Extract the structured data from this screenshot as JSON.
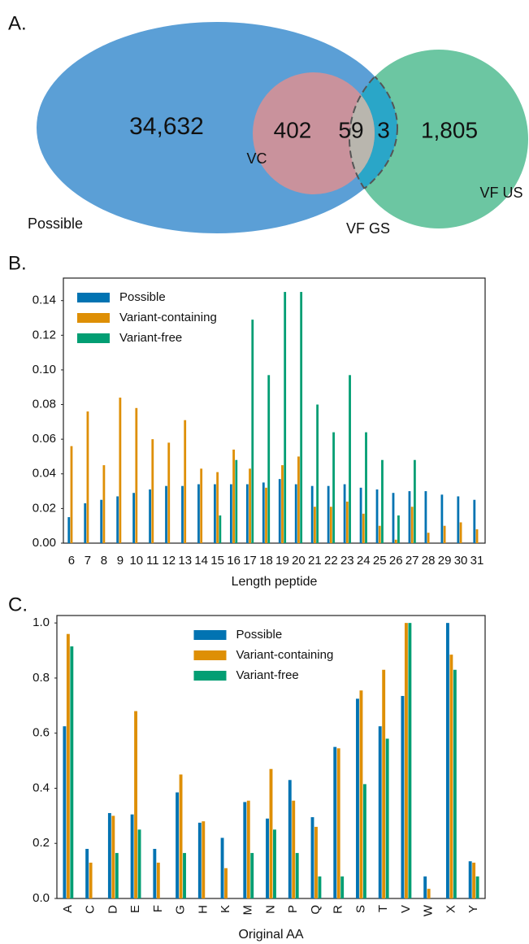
{
  "chart_data": [
    {
      "type": "venn",
      "panel_label": "A.",
      "set_labels": [
        "Possible",
        "VC",
        "VF GS",
        "VF US"
      ],
      "values": [
        34632,
        402,
        59,
        3,
        1805
      ],
      "value_labels": [
        "34,632",
        "402",
        "59",
        "3",
        "1,805"
      ],
      "colors": [
        "#5b9fd6",
        "#c9929c",
        "#6cc6a2",
        "#2aa6c8",
        "#b9b6ae"
      ]
    },
    {
      "type": "bar",
      "panel_label": "B.",
      "xlabel": "Length peptide",
      "legend": "upper left",
      "categories": [
        "6",
        "7",
        "8",
        "9",
        "10",
        "11",
        "12",
        "13",
        "14",
        "15",
        "16",
        "17",
        "18",
        "19",
        "20",
        "21",
        "22",
        "23",
        "24",
        "25",
        "26",
        "27",
        "28",
        "29",
        "30",
        "31"
      ],
      "series": [
        {
          "name": "Possible",
          "color": "#0173b2",
          "values": [
            0.015,
            0.023,
            0.025,
            0.027,
            0.029,
            0.031,
            0.033,
            0.033,
            0.034,
            0.034,
            0.034,
            0.034,
            0.035,
            0.037,
            0.034,
            0.033,
            0.033,
            0.034,
            0.032,
            0.031,
            0.029,
            0.03,
            0.03,
            0.028,
            0.027,
            0.025
          ]
        },
        {
          "name": "Variant-containing",
          "color": "#de8f05",
          "values": [
            0.056,
            0.076,
            0.045,
            0.084,
            0.078,
            0.06,
            0.058,
            0.071,
            0.043,
            0.041,
            0.054,
            0.043,
            0.032,
            0.045,
            0.05,
            0.021,
            0.021,
            0.024,
            0.017,
            0.01,
            0.002,
            0.021,
            0.006,
            0.01,
            0.012,
            0.008
          ]
        },
        {
          "name": "Variant-free",
          "color": "#029e73",
          "values": [
            0,
            0,
            0,
            0,
            0,
            0,
            0,
            0,
            0,
            0.016,
            0.048,
            0.129,
            0.097,
            0.145,
            0.145,
            0.08,
            0.064,
            0.097,
            0.064,
            0.048,
            0.016,
            0.048,
            0,
            0,
            0,
            0
          ]
        }
      ],
      "ylim": [
        0,
        0.153
      ],
      "yticks": [
        {
          "value": 0,
          "label": "0.00"
        },
        0.02,
        0.04,
        0.06,
        0.08,
        {
          "value": 0.1,
          "label": "0.10"
        },
        0.12,
        0.14
      ],
      "grid": false
    },
    {
      "type": "bar",
      "panel_label": "C.",
      "xlabel": "Original AA",
      "legend": "upper center",
      "rotate_xticks": true,
      "categories": [
        "A",
        "C",
        "D",
        "E",
        "F",
        "G",
        "H",
        "K",
        "M",
        "N",
        "P",
        "Q",
        "R",
        "S",
        "T",
        "V",
        "W",
        "X",
        "Y"
      ],
      "series": [
        {
          "name": "Possible",
          "color": "#0173b2",
          "values": [
            0.625,
            0.18,
            0.31,
            0.305,
            0.18,
            0.385,
            0.275,
            0.22,
            0.35,
            0.29,
            0.43,
            0.295,
            0.55,
            0.725,
            0.625,
            0.735,
            0.08,
            1.0,
            0.135
          ]
        },
        {
          "name": "Variant-containing",
          "color": "#de8f05",
          "values": [
            0.96,
            0.13,
            0.3,
            0.68,
            0.13,
            0.45,
            0.28,
            0.11,
            0.355,
            0.47,
            0.355,
            0.26,
            0.545,
            0.755,
            0.83,
            1.0,
            0.035,
            0.885,
            0.13
          ]
        },
        {
          "name": "Variant-free",
          "color": "#029e73",
          "values": [
            0.915,
            0,
            0.165,
            0.25,
            0,
            0.165,
            0,
            0,
            0.165,
            0.25,
            0.165,
            0.08,
            0.08,
            0.415,
            0.58,
            1.0,
            0,
            0.83,
            0.08
          ]
        }
      ],
      "ylim": [
        0,
        1.027
      ],
      "yticks": [
        {
          "value": 0,
          "label": "0.0"
        },
        0.2,
        0.4,
        0.6,
        0.8,
        {
          "value": 1,
          "label": "1.0"
        }
      ],
      "grid": false
    }
  ]
}
